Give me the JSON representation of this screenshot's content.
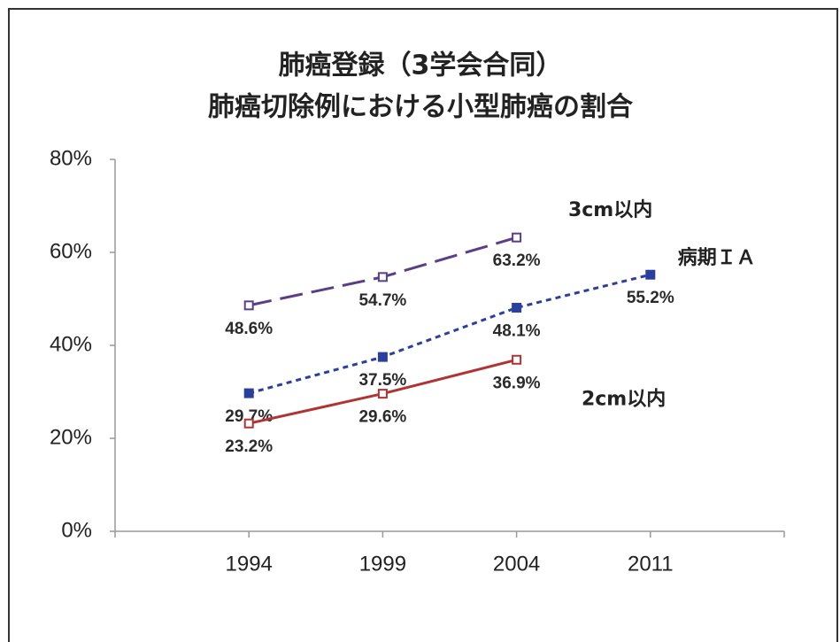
{
  "chart_data": {
    "type": "line",
    "title": [
      "肺癌登録（3学会合同）",
      "肺癌切除例における小型肺癌の割合"
    ],
    "categories": [
      null,
      "1994",
      "1999",
      "2004",
      "2011",
      null
    ],
    "ylim": [
      0,
      80
    ],
    "yticks": [
      {
        "value": 0,
        "label": "0%"
      },
      {
        "value": 20,
        "label": "20%"
      },
      {
        "value": 40,
        "label": "40%"
      },
      {
        "value": 60,
        "label": "60%"
      },
      {
        "value": 80,
        "label": "80%"
      }
    ],
    "series": [
      {
        "name": "3cm以内",
        "color": "#5b3f86",
        "dash": "long",
        "marker": "open",
        "values": [
          null,
          48.6,
          54.7,
          63.2,
          null,
          null
        ],
        "value_labels": [
          null,
          "48.6%",
          "54.7%",
          "63.2%",
          null,
          null
        ]
      },
      {
        "name": "病期ＩＡ",
        "color": "#2b3f9e",
        "dash": "short",
        "marker": "filled",
        "values": [
          null,
          29.7,
          37.5,
          48.1,
          55.2,
          null
        ],
        "value_labels": [
          null,
          "29.7%",
          "37.5%",
          "48.1%",
          "55.2%",
          null
        ]
      },
      {
        "name": "2cm以内",
        "color": "#b03434",
        "dash": "solid",
        "marker": "open",
        "values": [
          null,
          23.2,
          29.6,
          36.9,
          null,
          null
        ],
        "value_labels": [
          null,
          "23.2%",
          "29.6%",
          "36.9%",
          null,
          null
        ]
      }
    ]
  }
}
